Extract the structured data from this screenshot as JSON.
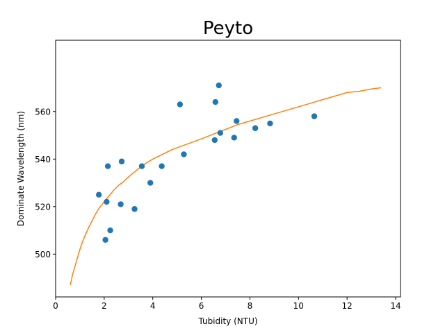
{
  "chart_data": {
    "type": "scatter",
    "title": "Peyto",
    "xlabel": "Tubidity (NTU)",
    "ylabel": "Dominate Wavelength (nm)",
    "xlim": [
      0,
      14.2
    ],
    "ylim": [
      482,
      590
    ],
    "xticks": [
      0,
      2,
      4,
      6,
      8,
      10,
      12,
      14
    ],
    "yticks": [
      500,
      520,
      540,
      560
    ],
    "grid": false,
    "colors": {
      "points": "#1f77b4",
      "fit": "#ff7f0e"
    },
    "series": [
      {
        "kind": "scatter",
        "x": [
          1.78,
          2.05,
          2.1,
          2.15,
          2.25,
          2.68,
          2.72,
          3.25,
          3.55,
          3.9,
          4.37,
          5.12,
          5.28,
          6.55,
          6.58,
          6.72,
          6.78,
          7.35,
          7.45,
          8.22,
          8.83,
          10.65
        ],
        "y": [
          525,
          506,
          522,
          537,
          510,
          521,
          539,
          519,
          537,
          530,
          537,
          563,
          542,
          548,
          564,
          571,
          551,
          549,
          556,
          553,
          555,
          558
        ]
      },
      {
        "kind": "line",
        "x": [
          0.6,
          0.65,
          0.7,
          0.8,
          0.9,
          1.0,
          1.1,
          1.2,
          1.35,
          1.5,
          1.65,
          1.8,
          2.0,
          2.2,
          2.4,
          2.6,
          2.8,
          3.0,
          3.3,
          3.6,
          4.0,
          4.4,
          4.8,
          5.2,
          5.6,
          6.0,
          6.5,
          7.0,
          7.5,
          8.0,
          8.5,
          9.0,
          9.5,
          10.0,
          10.5,
          11.0,
          11.5,
          12.0,
          12.5,
          13.0,
          13.4
        ],
        "y": [
          487,
          489,
          491.5,
          495,
          498.5,
          502,
          505,
          507.5,
          511,
          514,
          517,
          519.5,
          522,
          524.5,
          527,
          529,
          530.5,
          532.5,
          535,
          537.5,
          540,
          542,
          544,
          545.5,
          547,
          548.5,
          550.5,
          552.5,
          554.5,
          556,
          557.5,
          559,
          560.5,
          562,
          563.5,
          565,
          566.5,
          568,
          568.5,
          569.5,
          570
        ]
      }
    ]
  }
}
